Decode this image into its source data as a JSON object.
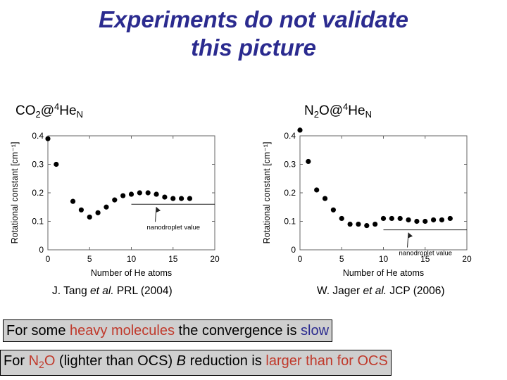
{
  "title": {
    "line1": "Experiments do not validate",
    "line2": "this picture"
  },
  "labels": {
    "left": {
      "p1": "CO",
      "s1": "2",
      "p2": "@",
      "s2": "4",
      "p3": "He",
      "s3": "N"
    },
    "right": {
      "p1": "N",
      "s1": "2",
      "p2": "O@",
      "s2": "4",
      "p3": "He",
      "s3": "N"
    }
  },
  "references": {
    "left": {
      "a": "J. Tang ",
      "b": "et al.",
      "c": " PRL (2004)"
    },
    "right": {
      "a": "W. Jager ",
      "b": "et al.",
      "c": " JCP (2006)"
    }
  },
  "notes": {
    "heavy": {
      "a": "For some ",
      "b": "heavy molecules",
      "c": " the convergence is ",
      "d": "slow"
    },
    "n2o": {
      "a": "For ",
      "b": "N",
      "b_sub": "2",
      "b2": "O",
      "c": " (lighter than OCS) ",
      "d": "B",
      "e": " reduction is ",
      "f": "larger than for OCS"
    }
  },
  "colors": {
    "title": "#2b2b8f",
    "emphasis_red": "#c0392b",
    "emphasis_blue": "#2b2b8f",
    "note_box": "#cfcfcf"
  },
  "chart_data": [
    {
      "type": "scatter",
      "xlabel": "Number of He atoms",
      "ylabel": "Rotational constant [cm⁻¹]",
      "xlim": [
        0,
        20
      ],
      "ylim": [
        0,
        0.4
      ],
      "xticks": [
        0,
        5,
        10,
        15,
        20
      ],
      "yticks": [
        0,
        0.1,
        0.2,
        0.3,
        0.4
      ],
      "xtick_labels": [
        "0",
        "5",
        "10",
        "15",
        "20"
      ],
      "ytick_labels": [
        "0",
        "0.1",
        "0.2",
        "0.3",
        "0.4"
      ],
      "x": [
        0,
        1,
        3,
        4,
        5,
        6,
        7,
        8,
        9,
        10,
        11,
        12,
        13,
        14,
        15,
        16,
        17
      ],
      "y": [
        0.39,
        0.3,
        0.17,
        0.14,
        0.115,
        0.13,
        0.15,
        0.175,
        0.19,
        0.195,
        0.2,
        0.2,
        0.195,
        0.185,
        0.18,
        0.18,
        0.18
      ],
      "reference_line": {
        "y": 0.16,
        "x_start": 10,
        "x_end": 20,
        "label": "nanodroplet value"
      }
    },
    {
      "type": "scatter",
      "xlabel": "Number of He atoms",
      "ylabel": "Rotational constant [cm⁻¹]",
      "xlim": [
        0,
        20
      ],
      "ylim": [
        0,
        0.4
      ],
      "xticks": [
        0,
        5,
        10,
        15,
        20
      ],
      "yticks": [
        0,
        0.1,
        0.2,
        0.3,
        0.4
      ],
      "xtick_labels": [
        "0",
        "5",
        "10",
        "15",
        "20"
      ],
      "ytick_labels": [
        "0",
        "0.1",
        "0.2",
        "0.3",
        "0.4"
      ],
      "x": [
        0,
        1,
        2,
        3,
        4,
        5,
        6,
        7,
        8,
        9,
        10,
        11,
        12,
        13,
        14,
        15,
        16,
        17,
        18
      ],
      "y": [
        0.42,
        0.31,
        0.21,
        0.18,
        0.14,
        0.11,
        0.09,
        0.09,
        0.085,
        0.09,
        0.11,
        0.11,
        0.11,
        0.105,
        0.1,
        0.1,
        0.105,
        0.105,
        0.11
      ],
      "reference_line": {
        "y": 0.07,
        "x_start": 10,
        "x_end": 20,
        "label": "nanodroplet value"
      }
    }
  ]
}
